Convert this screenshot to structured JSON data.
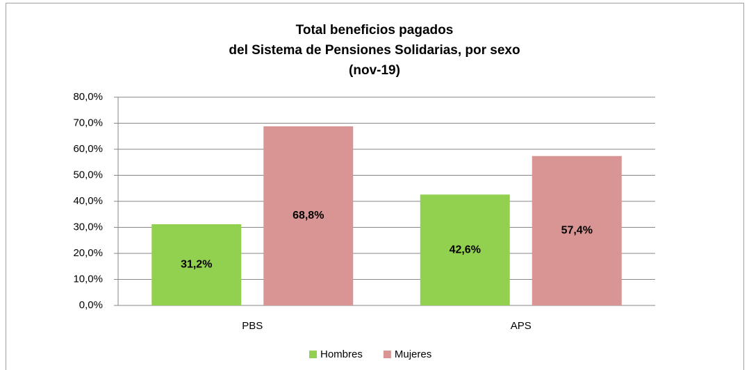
{
  "chart_data": {
    "type": "bar",
    "title": [
      "Total beneficios pagados",
      "del Sistema de Pensiones Solidarias, por sexo",
      "(nov-19)"
    ],
    "categories": [
      "PBS",
      "APS"
    ],
    "series": [
      {
        "name": "Hombres",
        "color": "#92d050",
        "values": [
          31.2,
          42.6
        ],
        "value_labels": [
          "31,2%",
          "42,6%"
        ]
      },
      {
        "name": "Mujeres",
        "color": "#d99594",
        "values": [
          68.8,
          57.4
        ],
        "value_labels": [
          "68,8%",
          "57,4%"
        ]
      }
    ],
    "ylim": [
      0,
      80
    ],
    "yticks": [
      {
        "value": 0,
        "label": "0,0%"
      },
      {
        "value": 10,
        "label": "10,0%"
      },
      {
        "value": 20,
        "label": "20,0%"
      },
      {
        "value": 30,
        "label": "30,0%"
      },
      {
        "value": 40,
        "label": "40,0%"
      },
      {
        "value": 50,
        "label": "50,0%"
      },
      {
        "value": 60,
        "label": "60,0%"
      },
      {
        "value": 70,
        "label": "70,0%"
      },
      {
        "value": 80,
        "label": "80,0%"
      }
    ],
    "grid": true,
    "legend": "bottom"
  }
}
